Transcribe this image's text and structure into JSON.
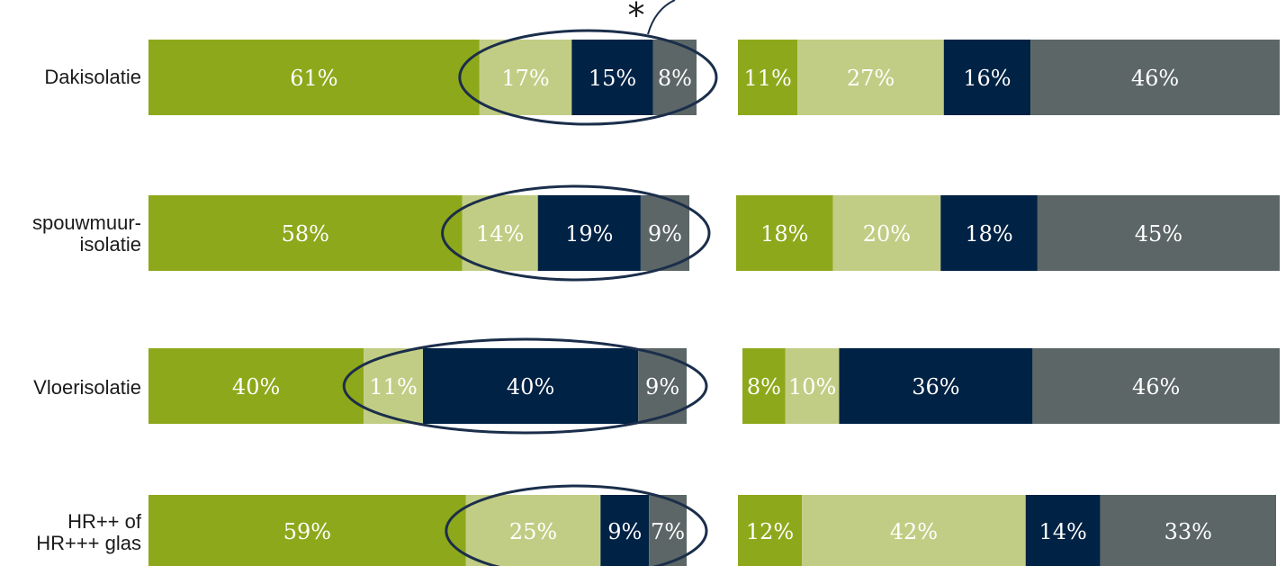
{
  "colors": {
    "green": "#8ea81b",
    "light_green": "#c1cd84",
    "navy": "#002244",
    "gray": "#5c6666",
    "ellipse": "#1b2e4b"
  },
  "annotation": {
    "marker": "*"
  },
  "chart_data": [
    {
      "type": "bar",
      "orientation": "horizontal",
      "stacked": true,
      "categories": [
        "Dakisolatie",
        "spouwmuur-\nisolatie",
        "Vloerisolatie",
        "HR++ of\nHR+++ glas"
      ],
      "series": [
        {
          "values": [
            61,
            58,
            40,
            59
          ]
        },
        {
          "values": [
            17,
            14,
            11,
            25
          ]
        },
        {
          "values": [
            15,
            19,
            40,
            9
          ]
        },
        {
          "values": [
            8,
            9,
            9,
            7
          ]
        }
      ],
      "data_labels": [
        [
          "61%",
          "17%",
          "15%",
          "8%"
        ],
        [
          "58%",
          "14%",
          "19%",
          "9%"
        ],
        [
          "40%",
          "11%",
          "40%",
          "9%"
        ],
        [
          "59%",
          "25%",
          "9%",
          "7%"
        ]
      ],
      "highlight": "series 2-4 circled in each row",
      "grid": false
    },
    {
      "type": "bar",
      "orientation": "horizontal",
      "stacked": true,
      "categories": [
        "Dakisolatie",
        "spouwmuur-\nisolatie",
        "Vloerisolatie",
        "HR++ of\nHR+++ glas"
      ],
      "series": [
        {
          "values": [
            11,
            18,
            8,
            12
          ]
        },
        {
          "values": [
            27,
            20,
            10,
            42
          ]
        },
        {
          "values": [
            16,
            18,
            36,
            14
          ]
        },
        {
          "values": [
            46,
            45,
            46,
            33
          ]
        }
      ],
      "data_labels": [
        [
          "11%",
          "27%",
          "16%",
          "46%"
        ],
        [
          "18%",
          "20%",
          "18%",
          "45%"
        ],
        [
          "8%",
          "10%",
          "36%",
          "46%"
        ],
        [
          "12%",
          "42%",
          "14%",
          "33%"
        ]
      ],
      "grid": false
    }
  ]
}
